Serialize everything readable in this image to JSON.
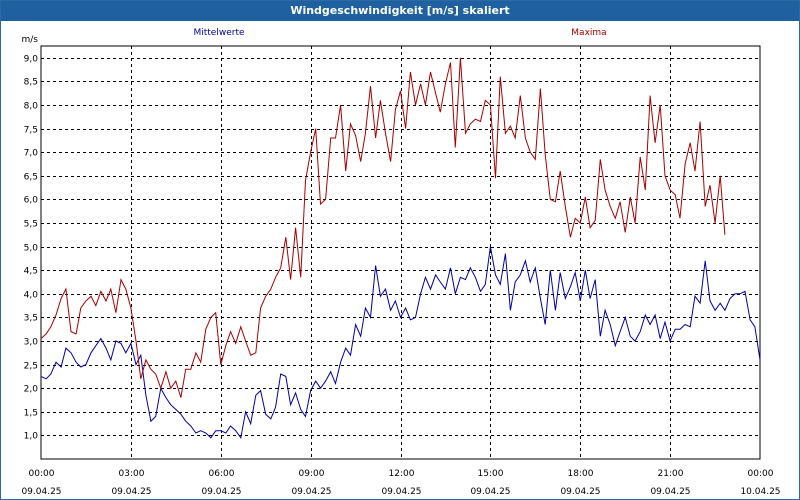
{
  "window": {
    "title": "Windgeschwindigkeit [m/s] skaliert"
  },
  "chart_data": {
    "type": "line",
    "ylabel": "m/s",
    "ylim": [
      0.5,
      9.25
    ],
    "xlim": [
      0,
      24
    ],
    "grid": true,
    "y_ticks": [
      "1,0",
      "1,5",
      "2,0",
      "2,5",
      "3,0",
      "3,5",
      "4,0",
      "4,5",
      "5,0",
      "5,5",
      "6,0",
      "6,5",
      "7,0",
      "7,5",
      "8,0",
      "8,5",
      "9,0"
    ],
    "x_ticks": [
      {
        "time": "00:00",
        "date": "09.04.25"
      },
      {
        "time": "03:00",
        "date": "09.04.25"
      },
      {
        "time": "06:00",
        "date": "09.04.25"
      },
      {
        "time": "09:00",
        "date": "09.04.25"
      },
      {
        "time": "12:00",
        "date": "09.04.25"
      },
      {
        "time": "15:00",
        "date": "09.04.25"
      },
      {
        "time": "18:00",
        "date": "09.04.25"
      },
      {
        "time": "21:00",
        "date": "09.04.25"
      },
      {
        "time": "00:00",
        "date": "10.04.25"
      }
    ],
    "series": [
      {
        "name": "Mittelwerte",
        "color": "#0000aa",
        "points": [
          [
            0,
            2.25
          ],
          [
            0.17,
            2.2
          ],
          [
            0.33,
            2.3
          ],
          [
            0.5,
            2.55
          ],
          [
            0.67,
            2.45
          ],
          [
            0.83,
            2.85
          ],
          [
            1.0,
            2.75
          ],
          [
            1.17,
            2.55
          ],
          [
            1.33,
            2.45
          ],
          [
            1.5,
            2.5
          ],
          [
            1.67,
            2.75
          ],
          [
            1.83,
            2.9
          ],
          [
            2.0,
            3.05
          ],
          [
            2.17,
            2.85
          ],
          [
            2.33,
            2.6
          ],
          [
            2.5,
            3.0
          ],
          [
            2.67,
            2.95
          ],
          [
            2.83,
            2.75
          ],
          [
            3.0,
            2.95
          ],
          [
            3.17,
            2.5
          ],
          [
            3.33,
            2.7
          ],
          [
            3.5,
            1.85
          ],
          [
            3.67,
            1.3
          ],
          [
            3.83,
            1.4
          ],
          [
            4.0,
            2.0
          ],
          [
            4.17,
            1.8
          ],
          [
            4.33,
            1.65
          ],
          [
            4.5,
            1.55
          ],
          [
            4.67,
            1.45
          ],
          [
            4.83,
            1.3
          ],
          [
            5.0,
            1.2
          ],
          [
            5.17,
            1.05
          ],
          [
            5.33,
            1.1
          ],
          [
            5.5,
            1.05
          ],
          [
            5.67,
            0.95
          ],
          [
            5.83,
            1.1
          ],
          [
            6.0,
            1.1
          ],
          [
            6.17,
            1.05
          ],
          [
            6.33,
            1.2
          ],
          [
            6.5,
            1.1
          ],
          [
            6.67,
            0.95
          ],
          [
            6.83,
            1.5
          ],
          [
            7.0,
            1.25
          ],
          [
            7.17,
            1.85
          ],
          [
            7.33,
            1.95
          ],
          [
            7.5,
            1.45
          ],
          [
            7.67,
            1.35
          ],
          [
            7.83,
            1.6
          ],
          [
            8.0,
            2.3
          ],
          [
            8.17,
            2.25
          ],
          [
            8.33,
            1.65
          ],
          [
            8.5,
            1.9
          ],
          [
            8.67,
            1.55
          ],
          [
            8.83,
            1.4
          ],
          [
            9.0,
            1.95
          ],
          [
            9.17,
            2.15
          ],
          [
            9.33,
            2.0
          ],
          [
            9.5,
            2.15
          ],
          [
            9.67,
            2.35
          ],
          [
            9.83,
            2.1
          ],
          [
            10.0,
            2.55
          ],
          [
            10.17,
            2.85
          ],
          [
            10.33,
            2.7
          ],
          [
            10.5,
            3.35
          ],
          [
            10.67,
            3.1
          ],
          [
            10.83,
            3.7
          ],
          [
            11.0,
            3.5
          ],
          [
            11.17,
            4.6
          ],
          [
            11.33,
            3.95
          ],
          [
            11.5,
            4.1
          ],
          [
            11.67,
            3.65
          ],
          [
            11.83,
            3.85
          ],
          [
            12.0,
            3.5
          ],
          [
            12.17,
            3.7
          ],
          [
            12.33,
            3.45
          ],
          [
            12.5,
            3.5
          ],
          [
            12.67,
            4.0
          ],
          [
            12.83,
            4.35
          ],
          [
            13.0,
            4.1
          ],
          [
            13.17,
            4.4
          ],
          [
            13.33,
            4.25
          ],
          [
            13.5,
            4.1
          ],
          [
            13.67,
            4.55
          ],
          [
            13.83,
            4.0
          ],
          [
            14.0,
            4.35
          ],
          [
            14.17,
            4.3
          ],
          [
            14.33,
            4.55
          ],
          [
            14.5,
            4.35
          ],
          [
            14.67,
            4.05
          ],
          [
            14.83,
            4.2
          ],
          [
            15.0,
            5.0
          ],
          [
            15.17,
            4.4
          ],
          [
            15.33,
            4.2
          ],
          [
            15.5,
            4.85
          ],
          [
            15.67,
            3.65
          ],
          [
            15.83,
            4.25
          ],
          [
            16.0,
            4.4
          ],
          [
            16.17,
            4.7
          ],
          [
            16.33,
            4.25
          ],
          [
            16.5,
            4.55
          ],
          [
            16.67,
            3.9
          ],
          [
            16.83,
            3.35
          ],
          [
            17.0,
            4.5
          ],
          [
            17.17,
            3.65
          ],
          [
            17.33,
            4.45
          ],
          [
            17.5,
            3.9
          ],
          [
            17.67,
            4.15
          ],
          [
            17.83,
            4.45
          ],
          [
            18.0,
            3.85
          ],
          [
            18.17,
            4.5
          ],
          [
            18.33,
            3.9
          ],
          [
            18.5,
            4.3
          ],
          [
            18.67,
            3.1
          ],
          [
            18.83,
            3.65
          ],
          [
            19.0,
            3.35
          ],
          [
            19.17,
            2.9
          ],
          [
            19.33,
            3.2
          ],
          [
            19.5,
            3.5
          ],
          [
            19.67,
            3.1
          ],
          [
            19.83,
            3.0
          ],
          [
            20.0,
            3.2
          ],
          [
            20.17,
            3.55
          ],
          [
            20.33,
            3.35
          ],
          [
            20.5,
            3.55
          ],
          [
            20.67,
            3.05
          ],
          [
            20.83,
            3.4
          ],
          [
            21.0,
            3.0
          ],
          [
            21.17,
            3.25
          ],
          [
            21.33,
            3.25
          ],
          [
            21.5,
            3.35
          ],
          [
            21.67,
            3.3
          ],
          [
            21.83,
            3.95
          ],
          [
            22.0,
            3.8
          ],
          [
            22.17,
            4.7
          ],
          [
            22.33,
            3.85
          ],
          [
            22.5,
            3.65
          ],
          [
            22.67,
            3.8
          ],
          [
            22.83,
            3.65
          ],
          [
            23.0,
            3.9
          ],
          [
            23.17,
            4.0
          ],
          [
            23.33,
            4.0
          ],
          [
            23.5,
            4.05
          ],
          [
            23.67,
            3.45
          ],
          [
            23.83,
            3.3
          ],
          [
            24.0,
            2.6
          ]
        ]
      },
      {
        "name": "Maxima",
        "color": "#aa0000",
        "points": [
          [
            0,
            3.05
          ],
          [
            0.17,
            3.15
          ],
          [
            0.33,
            3.3
          ],
          [
            0.5,
            3.55
          ],
          [
            0.67,
            3.9
          ],
          [
            0.83,
            4.1
          ],
          [
            1.0,
            3.2
          ],
          [
            1.17,
            3.15
          ],
          [
            1.33,
            3.7
          ],
          [
            1.5,
            3.85
          ],
          [
            1.67,
            3.95
          ],
          [
            1.83,
            3.75
          ],
          [
            2.0,
            4.05
          ],
          [
            2.17,
            3.85
          ],
          [
            2.33,
            4.1
          ],
          [
            2.5,
            3.6
          ],
          [
            2.67,
            4.3
          ],
          [
            2.83,
            4.1
          ],
          [
            3.0,
            3.7
          ],
          [
            3.17,
            3.0
          ],
          [
            3.33,
            2.2
          ],
          [
            3.5,
            2.6
          ],
          [
            3.67,
            2.4
          ],
          [
            3.83,
            2.3
          ],
          [
            4.0,
            2.0
          ],
          [
            4.17,
            2.35
          ],
          [
            4.33,
            2.0
          ],
          [
            4.5,
            2.15
          ],
          [
            4.67,
            1.8
          ],
          [
            4.83,
            2.4
          ],
          [
            5.0,
            2.4
          ],
          [
            5.17,
            2.75
          ],
          [
            5.33,
            2.55
          ],
          [
            5.5,
            3.25
          ],
          [
            5.67,
            3.5
          ],
          [
            5.83,
            3.6
          ],
          [
            6.0,
            2.5
          ],
          [
            6.17,
            2.9
          ],
          [
            6.33,
            3.2
          ],
          [
            6.5,
            2.95
          ],
          [
            6.67,
            3.3
          ],
          [
            6.83,
            3.0
          ],
          [
            7.0,
            2.7
          ],
          [
            7.17,
            2.75
          ],
          [
            7.33,
            3.7
          ],
          [
            7.5,
            3.95
          ],
          [
            7.67,
            4.1
          ],
          [
            7.83,
            4.35
          ],
          [
            8.0,
            4.55
          ],
          [
            8.17,
            5.2
          ],
          [
            8.33,
            4.3
          ],
          [
            8.5,
            5.4
          ],
          [
            8.67,
            4.35
          ],
          [
            8.83,
            6.4
          ],
          [
            9.0,
            7.0
          ],
          [
            9.17,
            7.5
          ],
          [
            9.33,
            5.9
          ],
          [
            9.5,
            6.0
          ],
          [
            9.67,
            7.3
          ],
          [
            9.83,
            7.3
          ],
          [
            10.0,
            8.0
          ],
          [
            10.17,
            6.6
          ],
          [
            10.33,
            7.6
          ],
          [
            10.5,
            7.35
          ],
          [
            10.67,
            6.8
          ],
          [
            10.83,
            7.4
          ],
          [
            11.0,
            8.4
          ],
          [
            11.17,
            7.3
          ],
          [
            11.33,
            8.1
          ],
          [
            11.5,
            7.4
          ],
          [
            11.67,
            6.8
          ],
          [
            11.83,
            7.9
          ],
          [
            12.0,
            8.3
          ],
          [
            12.17,
            7.5
          ],
          [
            12.33,
            8.7
          ],
          [
            12.5,
            8.0
          ],
          [
            12.67,
            8.45
          ],
          [
            12.83,
            8.0
          ],
          [
            13.0,
            8.7
          ],
          [
            13.17,
            8.25
          ],
          [
            13.33,
            7.85
          ],
          [
            13.5,
            8.45
          ],
          [
            13.67,
            8.9
          ],
          [
            13.83,
            7.1
          ],
          [
            14.0,
            9.0
          ],
          [
            14.17,
            7.4
          ],
          [
            14.33,
            7.6
          ],
          [
            14.5,
            7.7
          ],
          [
            14.67,
            7.65
          ],
          [
            14.83,
            8.1
          ],
          [
            15.0,
            8.0
          ],
          [
            15.17,
            6.45
          ],
          [
            15.33,
            8.6
          ],
          [
            15.5,
            7.4
          ],
          [
            15.67,
            7.55
          ],
          [
            15.83,
            7.3
          ],
          [
            16.0,
            8.2
          ],
          [
            16.17,
            7.3
          ],
          [
            16.33,
            7.0
          ],
          [
            16.5,
            6.85
          ],
          [
            16.67,
            8.35
          ],
          [
            16.83,
            6.95
          ],
          [
            17.0,
            6.0
          ],
          [
            17.17,
            5.95
          ],
          [
            17.33,
            6.6
          ],
          [
            17.5,
            5.85
          ],
          [
            17.67,
            5.2
          ],
          [
            17.83,
            5.6
          ],
          [
            18.0,
            5.5
          ],
          [
            18.17,
            6.05
          ],
          [
            18.33,
            5.4
          ],
          [
            18.5,
            5.55
          ],
          [
            18.67,
            6.85
          ],
          [
            18.83,
            6.2
          ],
          [
            19.0,
            5.85
          ],
          [
            19.17,
            5.6
          ],
          [
            19.33,
            5.95
          ],
          [
            19.5,
            5.3
          ],
          [
            19.67,
            6.05
          ],
          [
            19.83,
            5.5
          ],
          [
            20.0,
            6.9
          ],
          [
            20.17,
            6.2
          ],
          [
            20.33,
            8.2
          ],
          [
            20.5,
            7.2
          ],
          [
            20.67,
            8.0
          ],
          [
            20.83,
            6.5
          ],
          [
            21.0,
            6.2
          ],
          [
            21.17,
            6.1
          ],
          [
            21.33,
            5.6
          ],
          [
            21.5,
            6.75
          ],
          [
            21.67,
            7.2
          ],
          [
            21.83,
            6.6
          ],
          [
            22.0,
            7.65
          ],
          [
            22.17,
            5.85
          ],
          [
            22.33,
            6.3
          ],
          [
            22.5,
            5.5
          ],
          [
            22.67,
            6.5
          ],
          [
            22.83,
            5.25
          ]
        ]
      }
    ]
  }
}
